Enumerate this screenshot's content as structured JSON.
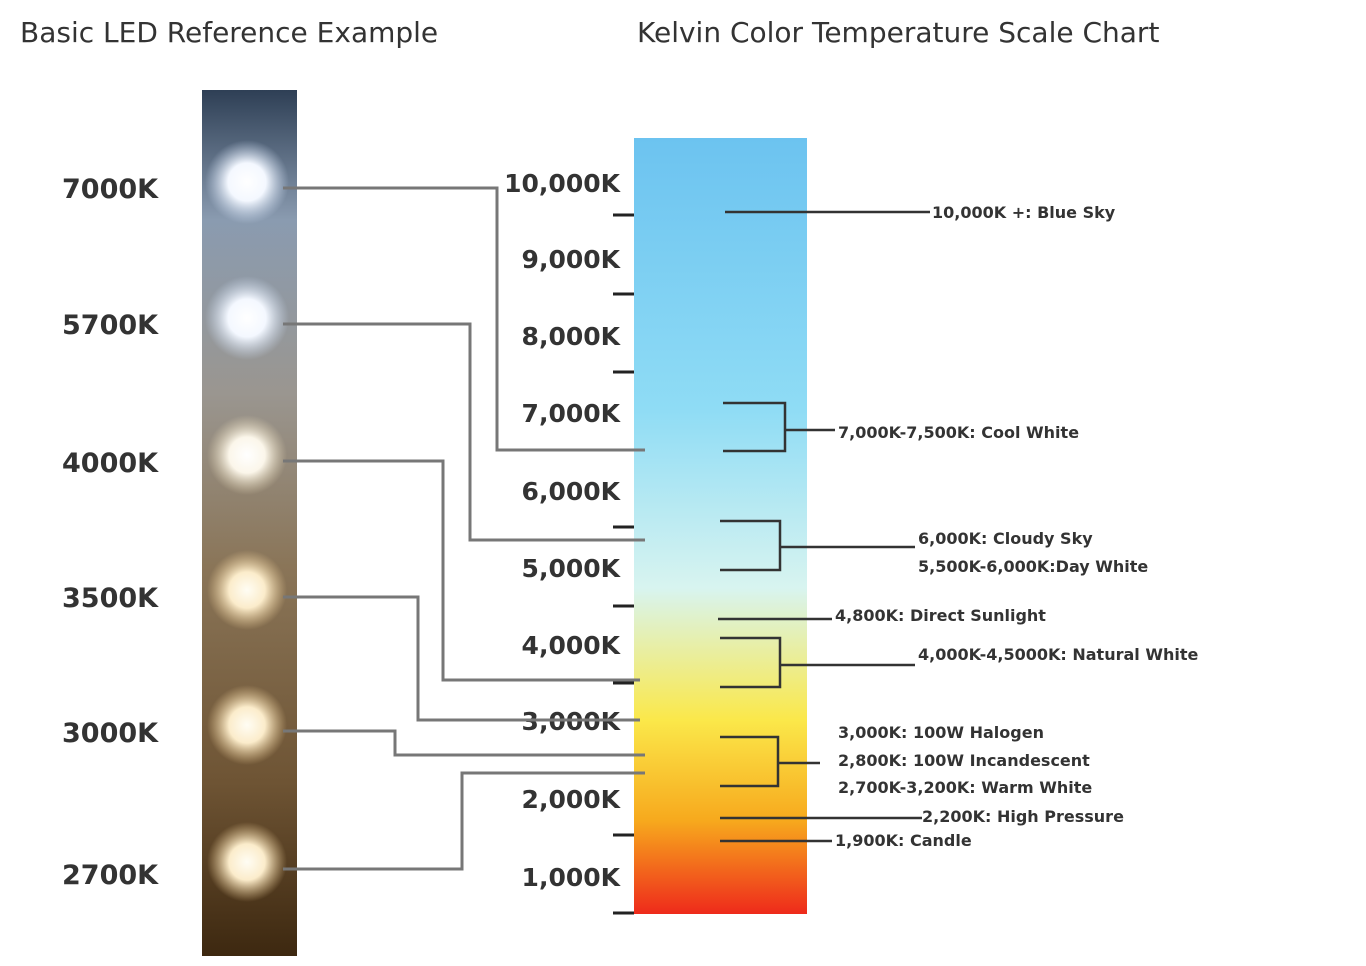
{
  "titles": {
    "left": "Basic LED Reference Example",
    "right": "Kelvin Color Temperature Scale Chart"
  },
  "led_labels": [
    "7000K",
    "5700K",
    "4000K",
    "3500K",
    "3000K",
    "2700K"
  ],
  "scale_labels": [
    "10,000K",
    "9,000K",
    "8,000K",
    "7,000K",
    "6,000K",
    "5,000K",
    "4,000K",
    "3,000K",
    "2,000K",
    "1,000K"
  ],
  "annotations": {
    "blue_sky": "10,000K +: Blue Sky",
    "cool_white": "7,000K-7,500K: Cool White",
    "cloudy_sky": "6,000K: Cloudy Sky",
    "day_white": "5,500K-6,000K:Day White",
    "direct_sunlight": "4,800K: Direct Sunlight",
    "natural_white": "4,000K-4,5000K: Natural White",
    "halogen": "3,000K: 100W Halogen",
    "incandescent": "2,800K: 100W Incandescent",
    "warm_white": "2,700K-3,200K: Warm White",
    "high_pressure": "2,200K: High Pressure",
    "candle": "1,900K: Candle"
  },
  "colors": {
    "scale_top": "#6cc3f0",
    "scale_mid": "#d8f4f0",
    "scale_yellow": "#fbe84a",
    "scale_orange": "#f7941d",
    "scale_bottom": "#ee2a1b"
  }
}
